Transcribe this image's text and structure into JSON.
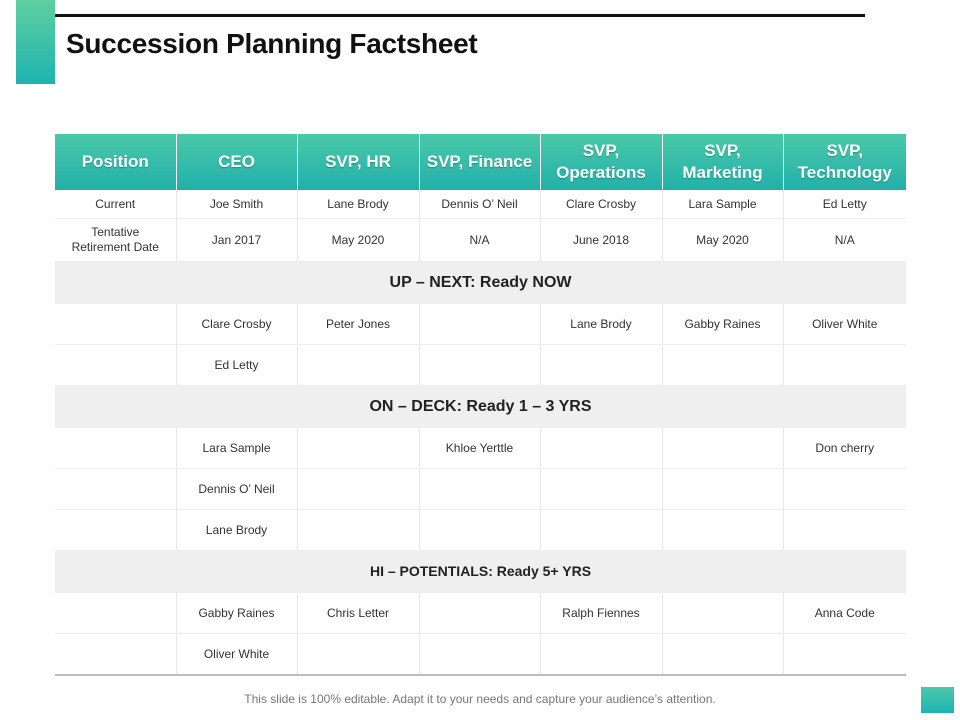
{
  "slide": {
    "title": "Succession Planning Factsheet",
    "footer": "This slide is 100% editable. Adapt it to your needs and capture your audience’s attention."
  },
  "colors": {
    "accent": "#22b0aa",
    "accent_light": "#4ac9a8",
    "section_bg": "#efefef"
  },
  "table": {
    "headers": [
      "Position",
      "CEO",
      "SVP, HR",
      "SVP, Finance",
      "SVP,\nOperations",
      "SVP,\nMarketing",
      "SVP,\nTechnology"
    ],
    "current": [
      "Current",
      "Joe Smith",
      "Lane Brody",
      "Dennis O’ Neil",
      "Clare Crosby",
      "Lara Sample",
      "Ed Letty"
    ],
    "retirement": [
      "Tentative\nRetirement Date",
      "Jan 2017",
      "May 2020",
      "N/A",
      "June 2018",
      "May 2020",
      "N/A"
    ],
    "sections": [
      {
        "label": "UP – NEXT: Ready NOW",
        "rows": [
          [
            "",
            "Clare Crosby",
            "Peter Jones",
            "",
            "Lane Brody",
            "Gabby Raines",
            "Oliver White"
          ],
          [
            "",
            "Ed Letty",
            "",
            "",
            "",
            "",
            ""
          ]
        ]
      },
      {
        "label": "ON – DECK: Ready 1 – 3 YRS",
        "rows": [
          [
            "",
            "Lara Sample",
            "",
            "Khloe Yerttle",
            "",
            "",
            "Don cherry"
          ],
          [
            "",
            "Dennis O’ Neil",
            "",
            "",
            "",
            "",
            ""
          ],
          [
            "",
            "Lane Brody",
            "",
            "",
            "",
            "",
            ""
          ]
        ]
      },
      {
        "label": "HI – POTENTIALS: Ready 5+ YRS",
        "rows": [
          [
            "",
            "Gabby Raines",
            "Chris Letter",
            "",
            "Ralph Fiennes",
            "",
            "Anna Code"
          ],
          [
            "",
            "Oliver White",
            "",
            "",
            "",
            "",
            ""
          ]
        ]
      }
    ]
  }
}
